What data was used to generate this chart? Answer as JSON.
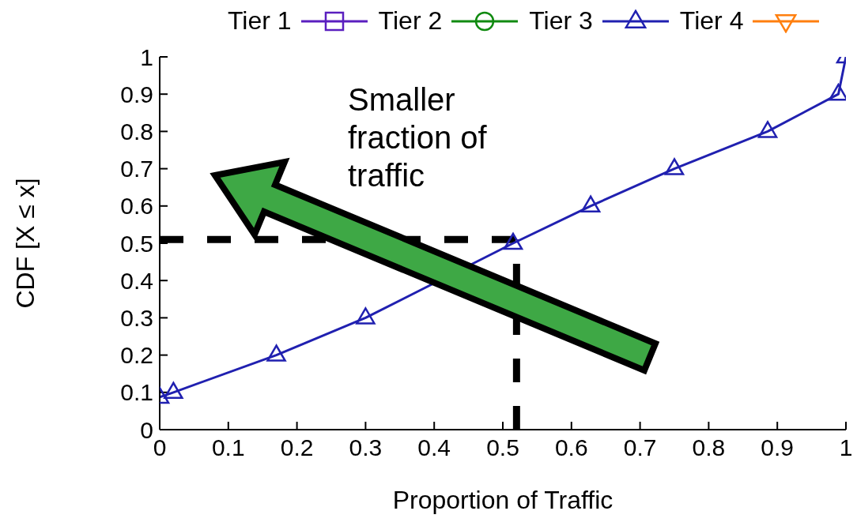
{
  "chart_data": {
    "type": "line",
    "xlabel": "Proportion of Traffic",
    "ylabel": "CDF [X ≤ x]",
    "xlim": [
      0,
      1
    ],
    "ylim": [
      0,
      1
    ],
    "xticks": [
      0,
      0.1,
      0.2,
      0.3,
      0.4,
      0.5,
      0.6,
      0.7,
      0.8,
      0.9,
      1
    ],
    "yticks": [
      0,
      0.1,
      0.2,
      0.3,
      0.4,
      0.5,
      0.6,
      0.7,
      0.8,
      0.9,
      1
    ],
    "legend": "top",
    "line_style": "solid",
    "series": [
      {
        "name": "Tier 1",
        "color": "#5a1fbf",
        "marker": "square"
      },
      {
        "name": "Tier 2",
        "color": "#108a10",
        "marker": "circle"
      },
      {
        "name": "Tier 3",
        "color": "#2020b0",
        "marker": "triangle",
        "x": [
          0,
          0.02,
          0.17,
          0.3,
          0.515,
          0.628,
          0.75,
          0.886,
          0.989,
          1
        ],
        "values": [
          0.087,
          0.1,
          0.2,
          0.3,
          0.5,
          0.6,
          0.7,
          0.8,
          0.9,
          1
        ]
      },
      {
        "name": "Tier 4",
        "color": "#ff7f0e",
        "marker": "triangle-down"
      }
    ],
    "ref_lines": [
      {
        "axis": "x",
        "value": 0.52,
        "color": "#000000",
        "line_style": "dashed"
      },
      {
        "axis": "y",
        "value": 0.51,
        "color": "#000000",
        "line_style": "dashed"
      }
    ],
    "annotations": [
      "Smaller fraction of traffic"
    ]
  }
}
